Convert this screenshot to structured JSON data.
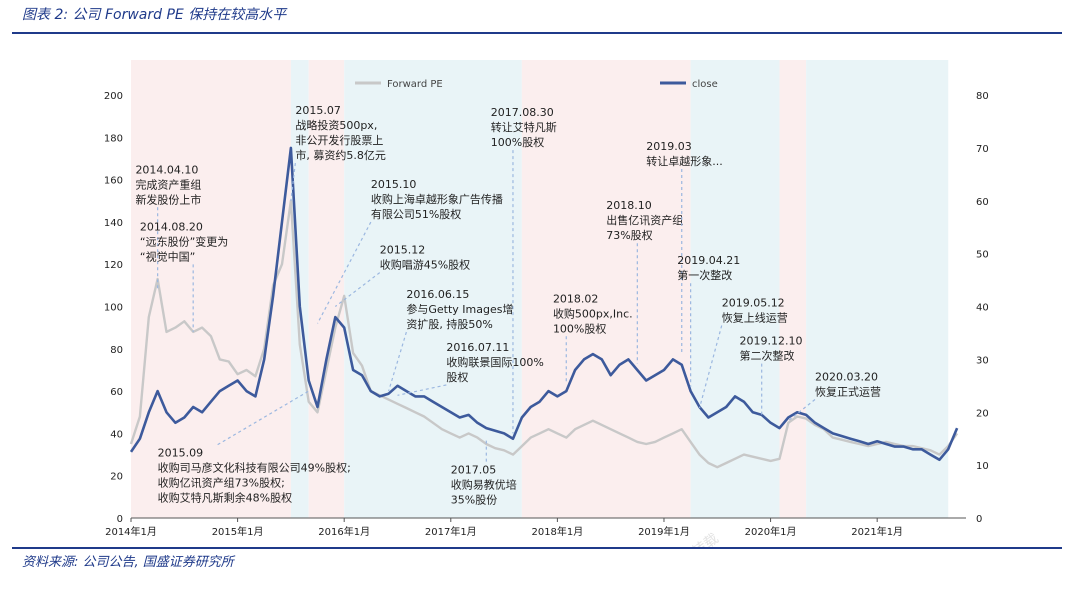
{
  "header": {
    "title": "图表 2: 公司 Forward PE 保持在较高水平"
  },
  "footer": {
    "source": "资料来源: 公司公告, 国盛证券研究所"
  },
  "watermark": "不可传播与转载",
  "colors": {
    "forward_pe": "#c8c8c8",
    "close": "#3d5a9c",
    "band_pink": "#fbeeee",
    "band_blue": "#e9f4f7",
    "rule": "#1f3a8a"
  },
  "chart_data": {
    "type": "line",
    "x_ticks": [
      "2014年1月",
      "2015年1月",
      "2016年1月",
      "2017年1月",
      "2018年1月",
      "2019年1月",
      "2020年1月",
      "2021年1月"
    ],
    "x_range": [
      "2014-01",
      "2021-10"
    ],
    "ylim_left": [
      0,
      200
    ],
    "y_ticks_left": [
      "0",
      "20",
      "40",
      "60",
      "80",
      "100",
      "120",
      "140",
      "160",
      "180",
      "200"
    ],
    "ylim_right": [
      0,
      80
    ],
    "y_ticks_right": [
      "0",
      "10",
      "20",
      "30",
      "40",
      "50",
      "60",
      "70",
      "80"
    ],
    "legend_position": "top",
    "grid": false,
    "series": [
      {
        "name": "Forward PE",
        "axis": "left",
        "points": [
          [
            "2014-01",
            35
          ],
          [
            "2014-02",
            48
          ],
          [
            "2014-03",
            95
          ],
          [
            "2014-04",
            113
          ],
          [
            "2014-05",
            88
          ],
          [
            "2014-06",
            90
          ],
          [
            "2014-07",
            93
          ],
          [
            "2014-08",
            88
          ],
          [
            "2014-09",
            90
          ],
          [
            "2014-10",
            86
          ],
          [
            "2014-11",
            75
          ],
          [
            "2014-12",
            74
          ],
          [
            "2015-01",
            68
          ],
          [
            "2015-02",
            70
          ],
          [
            "2015-03",
            67
          ],
          [
            "2015-04",
            80
          ],
          [
            "2015-05",
            110
          ],
          [
            "2015-06",
            120
          ],
          [
            "2015-07",
            150
          ],
          [
            "2015-08",
            82
          ],
          [
            "2015-09",
            55
          ],
          [
            "2015-10",
            50
          ],
          [
            "2015-11",
            70
          ],
          [
            "2015-12",
            90
          ],
          [
            "2016-01",
            105
          ],
          [
            "2016-02",
            78
          ],
          [
            "2016-03",
            72
          ],
          [
            "2016-04",
            60
          ],
          [
            "2016-05",
            58
          ],
          [
            "2016-06",
            56
          ],
          [
            "2016-07",
            54
          ],
          [
            "2016-08",
            52
          ],
          [
            "2016-09",
            50
          ],
          [
            "2016-10",
            48
          ],
          [
            "2016-11",
            45
          ],
          [
            "2016-12",
            42
          ],
          [
            "2017-01",
            40
          ],
          [
            "2017-02",
            38
          ],
          [
            "2017-03",
            40
          ],
          [
            "2017-04",
            38
          ],
          [
            "2017-05",
            35
          ],
          [
            "2017-06",
            33
          ],
          [
            "2017-07",
            32
          ],
          [
            "2017-08",
            30
          ],
          [
            "2017-09",
            34
          ],
          [
            "2017-10",
            38
          ],
          [
            "2017-11",
            40
          ],
          [
            "2017-12",
            42
          ],
          [
            "2018-01",
            40
          ],
          [
            "2018-02",
            38
          ],
          [
            "2018-03",
            42
          ],
          [
            "2018-04",
            44
          ],
          [
            "2018-05",
            46
          ],
          [
            "2018-06",
            44
          ],
          [
            "2018-07",
            42
          ],
          [
            "2018-08",
            40
          ],
          [
            "2018-09",
            38
          ],
          [
            "2018-10",
            36
          ],
          [
            "2018-11",
            35
          ],
          [
            "2018-12",
            36
          ],
          [
            "2019-01",
            38
          ],
          [
            "2019-02",
            40
          ],
          [
            "2019-03",
            42
          ],
          [
            "2019-04",
            36
          ],
          [
            "2019-05",
            30
          ],
          [
            "2019-06",
            26
          ],
          [
            "2019-07",
            24
          ],
          [
            "2019-08",
            26
          ],
          [
            "2019-09",
            28
          ],
          [
            "2019-10",
            30
          ],
          [
            "2019-11",
            29
          ],
          [
            "2019-12",
            28
          ],
          [
            "2020-01",
            27
          ],
          [
            "2020-02",
            28
          ],
          [
            "2020-03",
            45
          ],
          [
            "2020-04",
            48
          ],
          [
            "2020-05",
            47
          ],
          [
            "2020-06",
            44
          ],
          [
            "2020-07",
            42
          ],
          [
            "2020-08",
            38
          ],
          [
            "2020-09",
            37
          ],
          [
            "2020-10",
            36
          ],
          [
            "2020-11",
            35
          ],
          [
            "2020-12",
            34
          ],
          [
            "2021-01",
            35
          ],
          [
            "2021-02",
            36
          ],
          [
            "2021-03",
            35
          ],
          [
            "2021-04",
            34
          ],
          [
            "2021-05",
            34
          ],
          [
            "2021-06",
            33
          ],
          [
            "2021-07",
            32
          ],
          [
            "2021-08",
            30
          ],
          [
            "2021-09",
            34
          ],
          [
            "2021-10",
            40
          ]
        ]
      },
      {
        "name": "close",
        "axis": "right",
        "points": [
          [
            "2014-01",
            12.5
          ],
          [
            "2014-02",
            15
          ],
          [
            "2014-03",
            20
          ],
          [
            "2014-04",
            24
          ],
          [
            "2014-05",
            20
          ],
          [
            "2014-06",
            18
          ],
          [
            "2014-07",
            19
          ],
          [
            "2014-08",
            21
          ],
          [
            "2014-09",
            20
          ],
          [
            "2014-10",
            22
          ],
          [
            "2014-11",
            24
          ],
          [
            "2014-12",
            25
          ],
          [
            "2015-01",
            26
          ],
          [
            "2015-02",
            24
          ],
          [
            "2015-03",
            23
          ],
          [
            "2015-04",
            30
          ],
          [
            "2015-05",
            42
          ],
          [
            "2015-06",
            56
          ],
          [
            "2015-07",
            70
          ],
          [
            "2015-08",
            40
          ],
          [
            "2015-09",
            26
          ],
          [
            "2015-10",
            21
          ],
          [
            "2015-11",
            30
          ],
          [
            "2015-12",
            38
          ],
          [
            "2016-01",
            36
          ],
          [
            "2016-02",
            28
          ],
          [
            "2016-03",
            27
          ],
          [
            "2016-04",
            24
          ],
          [
            "2016-05",
            23
          ],
          [
            "2016-06",
            23.5
          ],
          [
            "2016-07",
            25
          ],
          [
            "2016-08",
            24
          ],
          [
            "2016-09",
            23
          ],
          [
            "2016-10",
            23
          ],
          [
            "2016-11",
            22
          ],
          [
            "2016-12",
            21
          ],
          [
            "2017-01",
            20
          ],
          [
            "2017-02",
            19
          ],
          [
            "2017-03",
            19.5
          ],
          [
            "2017-04",
            18
          ],
          [
            "2017-05",
            17
          ],
          [
            "2017-06",
            16.5
          ],
          [
            "2017-07",
            16
          ],
          [
            "2017-08",
            15
          ],
          [
            "2017-09",
            19
          ],
          [
            "2017-10",
            21
          ],
          [
            "2017-11",
            22
          ],
          [
            "2017-12",
            24
          ],
          [
            "2018-01",
            23
          ],
          [
            "2018-02",
            24
          ],
          [
            "2018-03",
            28
          ],
          [
            "2018-04",
            30
          ],
          [
            "2018-05",
            31
          ],
          [
            "2018-06",
            30
          ],
          [
            "2018-07",
            27
          ],
          [
            "2018-08",
            29
          ],
          [
            "2018-09",
            30
          ],
          [
            "2018-10",
            28
          ],
          [
            "2018-11",
            26
          ],
          [
            "2018-12",
            27
          ],
          [
            "2019-01",
            28
          ],
          [
            "2019-02",
            30
          ],
          [
            "2019-03",
            29
          ],
          [
            "2019-04",
            24
          ],
          [
            "2019-05",
            21
          ],
          [
            "2019-06",
            19
          ],
          [
            "2019-07",
            20
          ],
          [
            "2019-08",
            21
          ],
          [
            "2019-09",
            23
          ],
          [
            "2019-10",
            22
          ],
          [
            "2019-11",
            20
          ],
          [
            "2019-12",
            19.5
          ],
          [
            "2020-01",
            18
          ],
          [
            "2020-02",
            17
          ],
          [
            "2020-03",
            19
          ],
          [
            "2020-04",
            20
          ],
          [
            "2020-05",
            19.5
          ],
          [
            "2020-06",
            18
          ],
          [
            "2020-07",
            17
          ],
          [
            "2020-08",
            16
          ],
          [
            "2020-09",
            15.5
          ],
          [
            "2020-10",
            15
          ],
          [
            "2020-11",
            14.5
          ],
          [
            "2020-12",
            14
          ],
          [
            "2021-01",
            14.5
          ],
          [
            "2021-02",
            14
          ],
          [
            "2021-03",
            13.5
          ],
          [
            "2021-04",
            13.5
          ],
          [
            "2021-05",
            13
          ],
          [
            "2021-06",
            13
          ],
          [
            "2021-07",
            12
          ],
          [
            "2021-08",
            11
          ],
          [
            "2021-09",
            13
          ],
          [
            "2021-10",
            17
          ]
        ]
      }
    ],
    "bands": [
      {
        "from": "2014-01",
        "to": "2015-07",
        "color": "pink"
      },
      {
        "from": "2015-07",
        "to": "2015-09",
        "color": "blue"
      },
      {
        "from": "2015-09",
        "to": "2016-01",
        "color": "pink"
      },
      {
        "from": "2016-01",
        "to": "2017-09",
        "color": "blue"
      },
      {
        "from": "2017-09",
        "to": "2019-04",
        "color": "pink"
      },
      {
        "from": "2019-04",
        "to": "2020-02",
        "color": "blue"
      },
      {
        "from": "2020-02",
        "to": "2020-05",
        "color": "pink"
      },
      {
        "from": "2020-05",
        "to": "2021-09",
        "color": "blue"
      }
    ],
    "annotations": [
      {
        "lines": [
          "2014.04.10",
          "完成资产重组",
          "新发股份上市"
        ],
        "anchor": [
          "2014-04",
          108
        ],
        "text_x": "2014-01.5",
        "text_y": 163
      },
      {
        "lines": [
          "2014.08.20",
          "“远东股份”变更为",
          "“视觉中国”"
        ],
        "anchor": [
          "2014-08",
          88
        ],
        "text_x": "2014-02",
        "text_y": 136
      },
      {
        "lines": [
          "2015.07",
          "战略投资500px,",
          "非公开发行股票上",
          "市, 募资约5.8亿元"
        ],
        "anchor": [
          "2015-07",
          150
        ],
        "text_x": "2015-07.5",
        "text_y": 191
      },
      {
        "lines": [
          "2015.09",
          "收购司马彦文化科技有限公司49%股权;",
          "收购亿讯资产组73%股权;",
          "收购艾特凡斯剩余48%股权"
        ],
        "anchor": [
          "2015-09",
          60
        ],
        "text_x": "2014-04",
        "text_y": 29
      },
      {
        "lines": [
          "2015.10",
          "收购上海卓越形象广告传播",
          "有限公司51%股权"
        ],
        "anchor": [
          "2015-10",
          92
        ],
        "text_x": "2016-04",
        "text_y": 156
      },
      {
        "lines": [
          "2015.12",
          "收购唱游45%股权"
        ],
        "anchor": [
          "2015-12",
          100
        ],
        "text_x": "2016-05",
        "text_y": 125
      },
      {
        "lines": [
          "2016.06.15",
          "参与Getty Images增",
          "资扩股, 持股50%"
        ],
        "anchor": [
          "2016-06",
          60
        ],
        "text_x": "2016-08",
        "text_y": 104
      },
      {
        "lines": [
          "2016.07.11",
          "收购联景国际100%",
          "股权"
        ],
        "anchor": [
          "2016-07",
          58
        ],
        "text_x": "2017-00.5",
        "text_y": 79
      },
      {
        "lines": [
          "2017.05",
          "收购易教优培",
          "35%股份"
        ],
        "anchor": [
          "2017-05",
          38
        ],
        "text_x": "2017-01",
        "text_y": 21
      },
      {
        "lines": [
          "2017.08.30",
          "转让艾特凡斯",
          "100%股权"
        ],
        "anchor": [
          "2017-08",
          40
        ],
        "text_x": "2017-05.5",
        "text_y": 190
      },
      {
        "lines": [
          "2018.02",
          "收购500px,Inc.",
          "100%股权"
        ],
        "anchor": [
          "2018-02",
          64
        ],
        "text_x": "2018-00.5",
        "text_y": 102
      },
      {
        "lines": [
          "2018.10",
          "出售亿讯资产组",
          "73%股权"
        ],
        "anchor": [
          "2018-10",
          73
        ],
        "text_x": "2018-06.5",
        "text_y": 146
      },
      {
        "lines": [
          "2019.03",
          "转让卓越形象..."
        ],
        "anchor": [
          "2019-03",
          78
        ],
        "text_x": "2018-11",
        "text_y": 174
      },
      {
        "lines": [
          "2019.04.21",
          "第一次整改"
        ],
        "anchor": [
          "2019-04",
          62
        ],
        "text_x": "2019-02.5",
        "text_y": 120
      },
      {
        "lines": [
          "2019.05.12",
          "恢复上线运营"
        ],
        "anchor": [
          "2019-05",
          52
        ],
        "text_x": "2019-07.5",
        "text_y": 100
      },
      {
        "lines": [
          "2019.12.10",
          "第二次整改"
        ],
        "anchor": [
          "2019-12",
          48
        ],
        "text_x": "2019-09.5",
        "text_y": 82
      },
      {
        "lines": [
          "2020.03.20",
          "恢复正式运营"
        ],
        "anchor": [
          "2020-03",
          46
        ],
        "text_x": "2020-06",
        "text_y": 65
      }
    ]
  }
}
